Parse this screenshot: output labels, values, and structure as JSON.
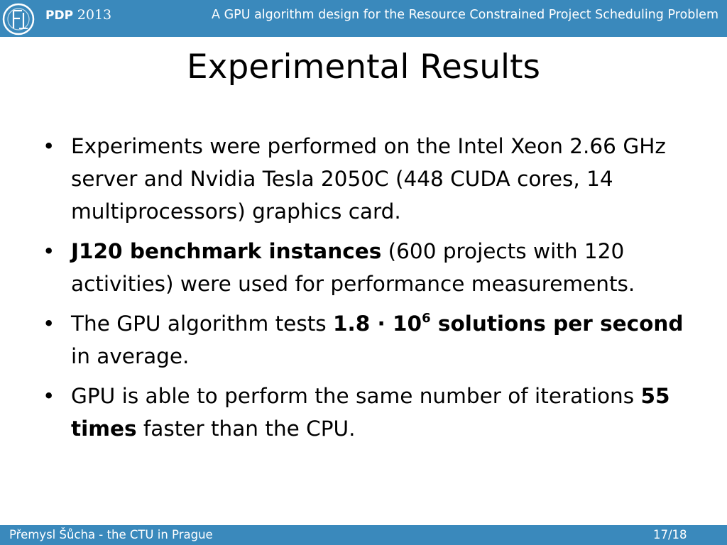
{
  "header": {
    "conference_name": "PDP",
    "conference_year": "2013",
    "talk_title": "A GPU algorithm design for  the Resource Constrained Project Scheduling Problem",
    "logo_icon": "university-logo-icon",
    "bar_color": "#3a89bc"
  },
  "slide": {
    "title": "Experimental Results",
    "bullets": [
      {
        "text": "Experiments were performed on the Intel Xeon 2.66 GHz server and Nvidia Tesla 2050C (448 CUDA cores, 14 multiprocessors) graphics card."
      },
      {
        "bold": "J120 benchmark instances",
        "text": " (600 projects with 120 activities) were used for performance measurements."
      },
      {
        "prefix": "The GPU algorithm tests ",
        "bold_base": "1.8 · 10",
        "bold_exponent": "6",
        "bold_suffix": " solutions per second",
        "text": " in average."
      },
      {
        "prefix": "GPU is able to perform the same number of iterations ",
        "bold": "55 times",
        "text": " faster than the CPU."
      }
    ],
    "bullet_symbol": "•"
  },
  "footer": {
    "author": "Přemysl Šůcha  - the CTU in Prague",
    "page": "17/18"
  }
}
